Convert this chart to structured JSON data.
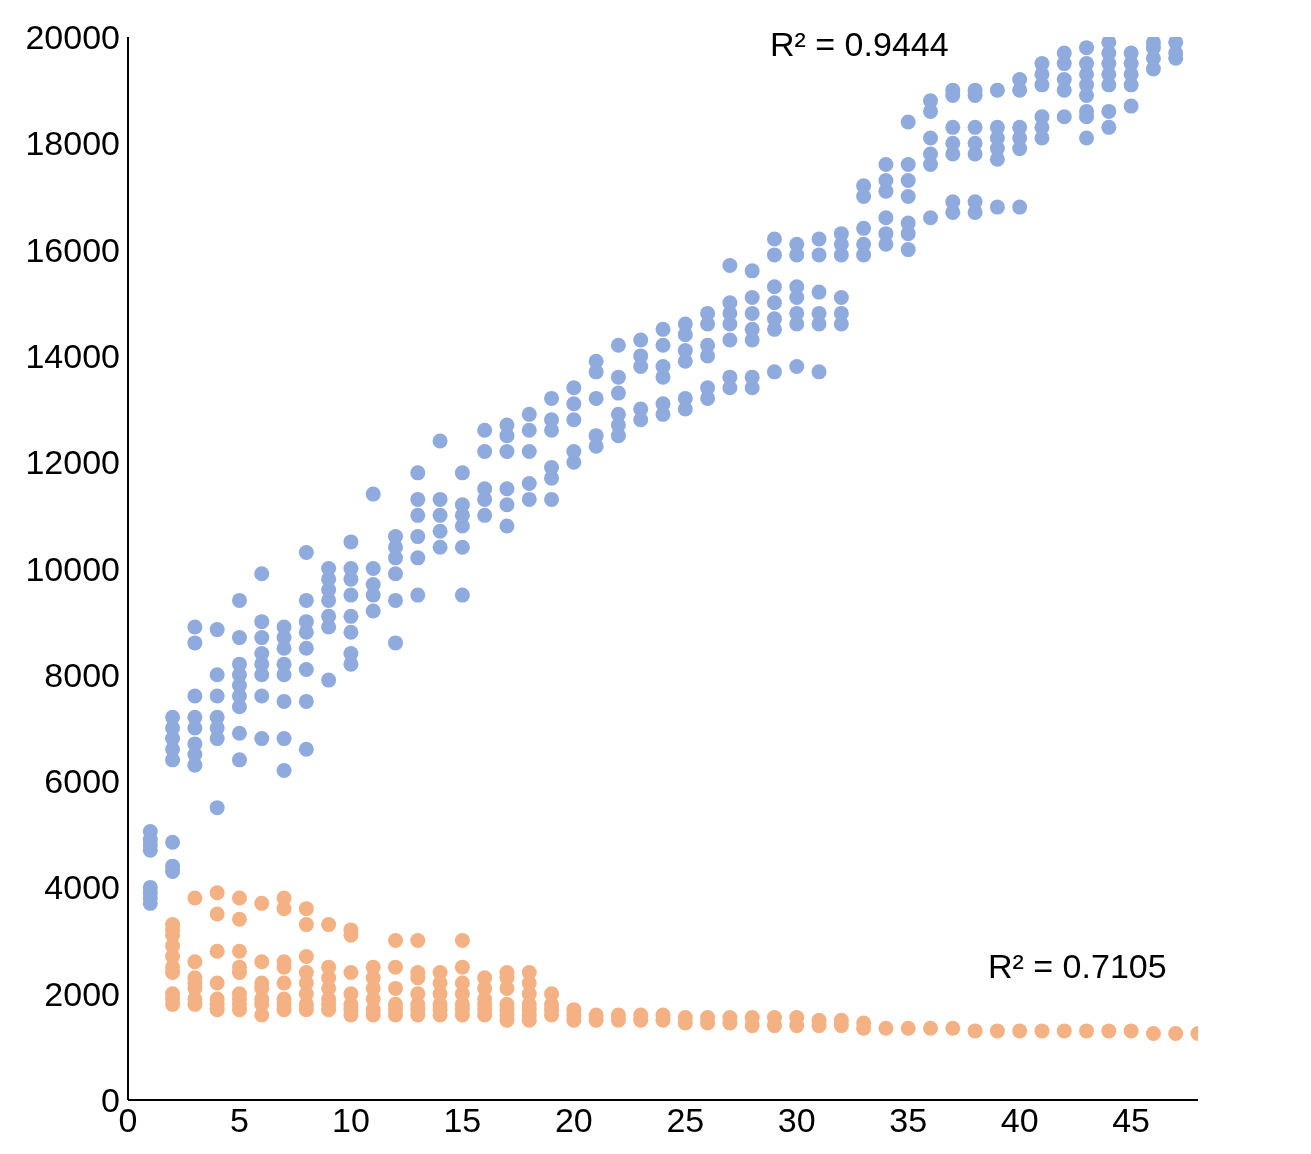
{
  "chart_data": {
    "type": "scatter",
    "xlim": [
      0,
      48
    ],
    "xticks": [
      0,
      5,
      10,
      15,
      20,
      25,
      30,
      35,
      40,
      45
    ],
    "ylim": [
      0,
      20000
    ],
    "yticks": [
      0,
      2000,
      4000,
      6000,
      8000,
      10000,
      12000,
      14000,
      16000,
      18000,
      20000
    ],
    "marker": "circle",
    "annotations": [
      "R² = 0.9444",
      "R² = 0.7105"
    ],
    "series": [
      {
        "color": "#8faadc",
        "x": [
          1,
          1,
          1,
          1,
          1,
          1,
          1,
          1,
          2,
          2,
          2,
          2,
          2,
          2,
          2,
          2,
          3,
          3,
          3,
          3,
          3,
          3,
          3,
          3,
          4,
          4,
          4,
          4,
          4,
          4,
          4,
          5,
          5,
          5,
          5,
          5,
          5,
          5,
          5,
          5,
          6,
          6,
          6,
          6,
          6,
          6,
          6,
          6,
          7,
          7,
          7,
          7,
          7,
          7,
          7,
          7,
          8,
          8,
          8,
          8,
          8,
          8,
          8,
          8,
          9,
          9,
          9,
          9,
          9,
          9,
          9,
          10,
          10,
          10,
          10,
          10,
          10,
          10,
          10,
          11,
          11,
          11,
          11,
          11,
          12,
          12,
          12,
          12,
          12,
          12,
          13,
          13,
          13,
          13,
          13,
          13,
          14,
          14,
          14,
          14,
          14,
          15,
          15,
          15,
          15,
          15,
          15,
          16,
          16,
          16,
          16,
          16,
          17,
          17,
          17,
          17,
          17,
          17,
          18,
          18,
          18,
          18,
          18,
          19,
          19,
          19,
          19,
          19,
          19,
          20,
          20,
          20,
          20,
          20,
          21,
          21,
          21,
          21,
          21,
          22,
          22,
          22,
          22,
          22,
          22,
          23,
          23,
          23,
          23,
          23,
          24,
          24,
          24,
          24,
          24,
          24,
          25,
          25,
          25,
          25,
          25,
          25,
          26,
          26,
          26,
          26,
          26,
          26,
          27,
          27,
          27,
          27,
          27,
          27,
          27,
          28,
          28,
          28,
          28,
          28,
          28,
          28,
          29,
          29,
          29,
          29,
          29,
          29,
          29,
          30,
          30,
          30,
          30,
          30,
          30,
          30,
          31,
          31,
          31,
          31,
          31,
          31,
          32,
          32,
          32,
          32,
          32,
          32,
          33,
          33,
          33,
          33,
          33,
          34,
          34,
          34,
          34,
          34,
          34,
          35,
          35,
          35,
          35,
          35,
          35,
          35,
          36,
          36,
          36,
          36,
          36,
          36,
          37,
          37,
          37,
          37,
          37,
          37,
          37,
          38,
          38,
          38,
          38,
          38,
          38,
          38,
          39,
          39,
          39,
          39,
          39,
          39,
          40,
          40,
          40,
          40,
          40,
          40,
          41,
          41,
          41,
          41,
          41,
          41,
          42,
          42,
          42,
          42,
          42,
          43,
          43,
          43,
          43,
          43,
          43,
          43,
          43,
          44,
          44,
          44,
          44,
          44,
          44,
          44,
          45,
          45,
          45,
          45,
          45,
          46,
          46,
          46,
          46,
          47,
          47,
          47
        ],
        "values": [
          3700,
          3800,
          3900,
          4000,
          4700,
          4800,
          4900,
          5050,
          4300,
          4400,
          4850,
          6400,
          6600,
          6800,
          7000,
          7200,
          6300,
          6500,
          6700,
          7000,
          7200,
          7600,
          8600,
          8900,
          5500,
          6800,
          7000,
          7200,
          7600,
          8000,
          8850,
          6400,
          6900,
          7400,
          7600,
          7800,
          8000,
          8200,
          8700,
          9400,
          6800,
          7600,
          8000,
          8200,
          8400,
          8700,
          9000,
          9900,
          6200,
          6800,
          7500,
          8000,
          8200,
          8500,
          8700,
          8900,
          6600,
          7500,
          8100,
          8500,
          8800,
          9000,
          9400,
          10300,
          7900,
          8900,
          9100,
          9400,
          9600,
          9800,
          10000,
          8200,
          8400,
          8800,
          9100,
          9500,
          9800,
          10000,
          10500,
          9200,
          9500,
          9700,
          10000,
          11400,
          8600,
          9400,
          9900,
          10200,
          10400,
          10600,
          9500,
          10200,
          10600,
          11000,
          11300,
          11800,
          10400,
          10700,
          11000,
          11300,
          12400,
          9500,
          10400,
          10800,
          11000,
          11200,
          11800,
          11000,
          11300,
          11500,
          12200,
          12600,
          10800,
          11200,
          11500,
          12200,
          12500,
          12700,
          11300,
          11600,
          12200,
          12600,
          12900,
          11300,
          11700,
          11900,
          12600,
          12800,
          13200,
          12000,
          12200,
          12800,
          13100,
          13400,
          12300,
          12500,
          13200,
          13700,
          13900,
          12500,
          12700,
          12900,
          13300,
          13600,
          14200,
          12800,
          13000,
          13800,
          14000,
          14300,
          12900,
          13100,
          13600,
          13800,
          14200,
          14500,
          13000,
          13200,
          13900,
          14100,
          14400,
          14600,
          13200,
          13400,
          14000,
          14200,
          14600,
          14800,
          13400,
          13600,
          14300,
          14600,
          14800,
          15000,
          15700,
          13400,
          13600,
          14300,
          14500,
          14800,
          15100,
          15600,
          13700,
          14500,
          14700,
          15000,
          15300,
          15900,
          16200,
          13800,
          14600,
          14800,
          15100,
          15300,
          15900,
          16100,
          13700,
          14600,
          14800,
          15200,
          15900,
          16200,
          14600,
          14800,
          15100,
          15900,
          16100,
          16300,
          15900,
          16100,
          16400,
          17000,
          17200,
          16100,
          16300,
          16600,
          17100,
          17300,
          17600,
          16000,
          16300,
          16500,
          17000,
          17300,
          17600,
          18400,
          16600,
          17600,
          17800,
          18100,
          18600,
          18800,
          16700,
          16900,
          17800,
          18000,
          18300,
          18900,
          19000,
          16700,
          16900,
          17800,
          18000,
          18300,
          18900,
          19000,
          16800,
          17700,
          17900,
          18100,
          18300,
          19000,
          16800,
          17900,
          18100,
          18300,
          19000,
          19200,
          18100,
          18300,
          18500,
          19100,
          19300,
          19500,
          18500,
          19000,
          19200,
          19500,
          19700,
          18100,
          18500,
          18600,
          18900,
          19100,
          19300,
          19500,
          19800,
          18300,
          18600,
          19100,
          19300,
          19500,
          19700,
          19900,
          18700,
          19100,
          19300,
          19500,
          19700,
          19400,
          19600,
          19800,
          19900,
          19600,
          19700,
          19900
        ]
      },
      {
        "color": "#f4b183",
        "x": [
          2,
          2,
          2,
          2,
          2,
          2,
          2,
          2,
          2,
          2,
          3,
          3,
          3,
          3,
          3,
          3,
          3,
          4,
          4,
          4,
          4,
          4,
          4,
          4,
          5,
          5,
          5,
          5,
          5,
          5,
          5,
          5,
          5,
          6,
          6,
          6,
          6,
          6,
          6,
          6,
          7,
          7,
          7,
          7,
          7,
          7,
          7,
          7,
          8,
          8,
          8,
          8,
          8,
          8,
          8,
          8,
          9,
          9,
          9,
          9,
          9,
          9,
          9,
          10,
          10,
          10,
          10,
          10,
          10,
          10,
          11,
          11,
          11,
          11,
          11,
          11,
          12,
          12,
          12,
          12,
          12,
          12,
          13,
          13,
          13,
          13,
          13,
          13,
          13,
          14,
          14,
          14,
          14,
          14,
          14,
          15,
          15,
          15,
          15,
          15,
          15,
          15,
          16,
          16,
          16,
          16,
          16,
          16,
          17,
          17,
          17,
          17,
          17,
          17,
          17,
          18,
          18,
          18,
          18,
          18,
          18,
          18,
          19,
          19,
          19,
          19,
          20,
          20,
          20,
          21,
          21,
          22,
          22,
          23,
          23,
          24,
          24,
          25,
          25,
          26,
          26,
          27,
          27,
          28,
          28,
          29,
          29,
          30,
          30,
          31,
          31,
          32,
          32,
          33,
          33,
          34,
          35,
          36,
          37,
          38,
          39,
          40,
          41,
          42,
          43,
          44,
          45,
          46,
          47,
          48
        ],
        "values": [
          1800,
          1900,
          2000,
          2400,
          2500,
          2700,
          2900,
          3100,
          3200,
          3300,
          1800,
          1900,
          2100,
          2200,
          2300,
          2600,
          3800,
          1700,
          1800,
          1900,
          2200,
          2800,
          3500,
          3900,
          1700,
          1800,
          1900,
          2000,
          2400,
          2500,
          2800,
          3400,
          3800,
          1600,
          1800,
          1900,
          2100,
          2200,
          2600,
          3700,
          1700,
          1800,
          1900,
          2200,
          2500,
          2600,
          3600,
          3800,
          1700,
          1800,
          2000,
          2200,
          2400,
          2700,
          3300,
          3600,
          1700,
          1800,
          1900,
          2100,
          2300,
          2500,
          3300,
          1600,
          1700,
          1800,
          2000,
          2400,
          3100,
          3200,
          1600,
          1700,
          1900,
          2100,
          2300,
          2500,
          1600,
          1700,
          1800,
          2100,
          2500,
          3000,
          1600,
          1700,
          1800,
          2000,
          2300,
          2400,
          3000,
          1600,
          1700,
          1800,
          2000,
          2200,
          2400,
          1600,
          1700,
          1800,
          2000,
          2200,
          2500,
          3000,
          1600,
          1700,
          1800,
          1900,
          2100,
          2300,
          1500,
          1600,
          1700,
          1800,
          2100,
          2300,
          2400,
          1500,
          1600,
          1700,
          1800,
          2000,
          2200,
          2400,
          1600,
          1700,
          1800,
          2000,
          1500,
          1600,
          1700,
          1500,
          1600,
          1500,
          1600,
          1500,
          1600,
          1500,
          1600,
          1450,
          1550,
          1450,
          1550,
          1450,
          1550,
          1400,
          1550,
          1400,
          1550,
          1400,
          1550,
          1400,
          1500,
          1400,
          1500,
          1350,
          1450,
          1350,
          1350,
          1350,
          1350,
          1300,
          1300,
          1300,
          1300,
          1300,
          1300,
          1300,
          1300,
          1250,
          1250,
          1250
        ]
      }
    ]
  }
}
